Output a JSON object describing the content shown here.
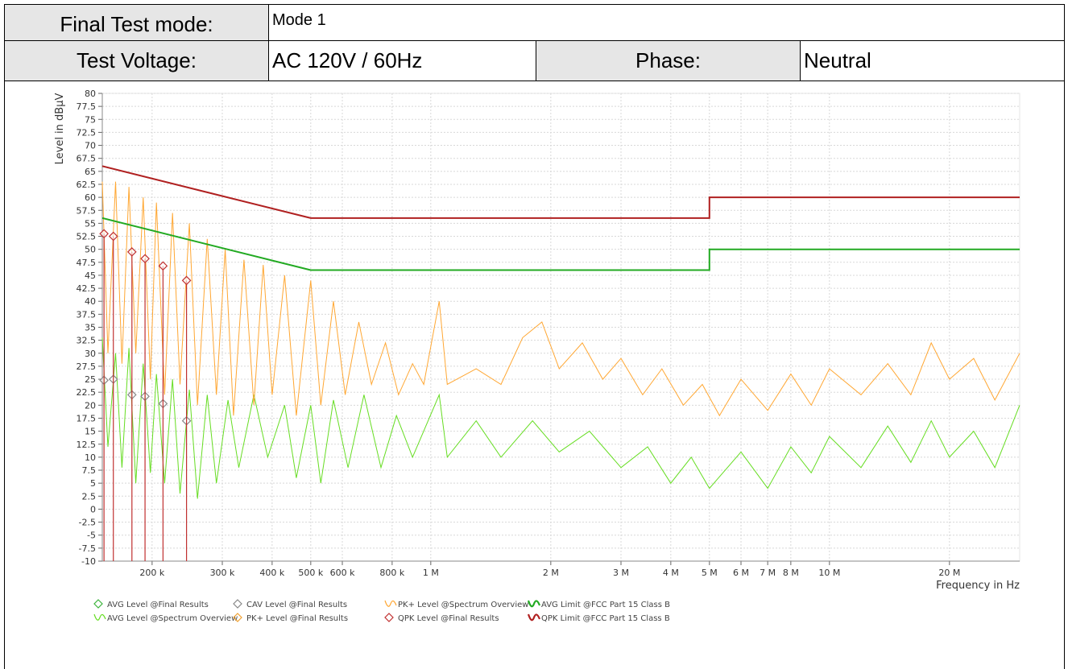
{
  "header": {
    "mode_label": "Final Test mode:",
    "mode_value": "Mode 1",
    "voltage_label": "Test Voltage:",
    "voltage_value": "AC 120V / 60Hz",
    "phase_label": "Phase:",
    "phase_value": "Neutral"
  },
  "chart_data": {
    "type": "line",
    "ylabel": "Level in dBµV",
    "xlabel": "Frequency in Hz",
    "xscale": "log",
    "grid": true,
    "xlim": [
      150000,
      30000000
    ],
    "ylim": [
      -10,
      80
    ],
    "yticks": [
      -10,
      -7.5,
      -5,
      -2.5,
      0,
      2.5,
      5,
      7.5,
      10,
      12.5,
      15,
      17.5,
      20,
      22.5,
      25,
      27.5,
      30,
      32.5,
      35,
      37.5,
      40,
      42.5,
      45,
      47.5,
      50,
      52.5,
      55,
      57.5,
      60,
      62.5,
      65,
      67.5,
      70,
      72.5,
      75,
      77.5,
      80
    ],
    "xticks": [
      {
        "value": 200000,
        "label": "200 k"
      },
      {
        "value": 300000,
        "label": "300 k"
      },
      {
        "value": 400000,
        "label": "400 k"
      },
      {
        "value": 500000,
        "label": "500 k"
      },
      {
        "value": 600000,
        "label": "600 k"
      },
      {
        "value": 800000,
        "label": "800 k"
      },
      {
        "value": 1000000,
        "label": "1 M"
      },
      {
        "value": 2000000,
        "label": "2 M"
      },
      {
        "value": 3000000,
        "label": "3 M"
      },
      {
        "value": 4000000,
        "label": "4 M"
      },
      {
        "value": 5000000,
        "label": "5 M"
      },
      {
        "value": 6000000,
        "label": "6 M"
      },
      {
        "value": 7000000,
        "label": "7 M"
      },
      {
        "value": 8000000,
        "label": "8 M"
      },
      {
        "value": 10000000,
        "label": "10 M"
      },
      {
        "value": 20000000,
        "label": "20 M"
      }
    ],
    "series": [
      {
        "name": "AVG Level @Final Results",
        "color": "#3cb43c",
        "marker": "diamond",
        "x": [],
        "values": []
      },
      {
        "name": "AVG Level @Spectrum Overview",
        "color": "#66dd22",
        "marker": "line",
        "x": [
          150000,
          155000,
          162000,
          168000,
          175000,
          182000,
          190000,
          198000,
          205000,
          215000,
          225000,
          235000,
          248000,
          260000,
          275000,
          290000,
          310000,
          330000,
          360000,
          390000,
          430000,
          460000,
          500000,
          530000,
          570000,
          620000,
          680000,
          750000,
          820000,
          900000,
          1050000,
          1100000,
          1300000,
          1500000,
          1800000,
          2100000,
          2500000,
          3000000,
          3500000,
          4000000,
          4500000,
          5000000,
          6000000,
          7000000,
          8000000,
          9000000,
          10000000,
          12000000,
          14000000,
          16000000,
          18000000,
          20000000,
          23000000,
          26000000,
          30000000
        ],
        "values": [
          33,
          12,
          30,
          8,
          31,
          5,
          28,
          7,
          26,
          5,
          25,
          3,
          23,
          2,
          22,
          5,
          21,
          8,
          22,
          10,
          20,
          6,
          20,
          5,
          21,
          8,
          22,
          8,
          18,
          10,
          22,
          10,
          17,
          10,
          17,
          11,
          15,
          8,
          12,
          5,
          10,
          4,
          11,
          4,
          12,
          7,
          14,
          8,
          16,
          9,
          17,
          10,
          15,
          8,
          20
        ]
      },
      {
        "name": "CAV Level @Final Results",
        "color": "#888888",
        "marker": "diamond",
        "x": [
          151500,
          159900,
          178000,
          192000,
          213000,
          244000
        ],
        "values": [
          24.8,
          25,
          22,
          21.7,
          20.3,
          17
        ]
      },
      {
        "name": "PK+ Level @Final Results",
        "color": "#f0a030",
        "marker": "diamond",
        "x": [],
        "values": []
      },
      {
        "name": "PK+ Level @Spectrum Overview",
        "color": "#ffa733",
        "marker": "line",
        "x": [
          150000,
          155000,
          162000,
          168000,
          175000,
          182000,
          190000,
          198000,
          205000,
          215000,
          225000,
          235000,
          248000,
          260000,
          275000,
          290000,
          305000,
          320000,
          340000,
          360000,
          380000,
          400000,
          430000,
          460000,
          500000,
          530000,
          570000,
          610000,
          660000,
          710000,
          770000,
          830000,
          900000,
          960000,
          1050000,
          1100000,
          1300000,
          1500000,
          1700000,
          1900000,
          2100000,
          2400000,
          2700000,
          3000000,
          3400000,
          3800000,
          4300000,
          4800000,
          5300000,
          6000000,
          7000000,
          8000000,
          9000000,
          10000000,
          12000000,
          14000000,
          16000000,
          18000000,
          20000000,
          23000000,
          26000000,
          30000000
        ],
        "values": [
          63,
          30,
          63,
          28,
          62,
          30,
          60,
          25,
          59,
          22,
          57,
          24,
          55,
          20,
          52,
          22,
          50,
          18,
          48,
          20,
          47,
          22,
          45,
          18,
          44,
          20,
          40,
          22,
          36,
          24,
          32,
          22,
          28,
          24,
          40,
          24,
          27,
          24,
          33,
          36,
          27,
          32,
          25,
          29,
          22,
          27,
          20,
          24,
          18,
          25,
          19,
          26,
          20,
          27,
          22,
          28,
          22,
          32,
          25,
          29,
          21,
          30
        ]
      },
      {
        "name": "QPK Level @Final Results",
        "color": "#c03030",
        "marker": "diamond",
        "stems": true,
        "x": [
          151500,
          159900,
          178000,
          192000,
          213000,
          244000
        ],
        "values": [
          53,
          52.5,
          49.5,
          48.2,
          46.8,
          44
        ]
      },
      {
        "name": "AVG Limit @FCC Part 15 Class B",
        "color": "#22aa22",
        "marker": "limit",
        "x": [
          150000,
          500000,
          5000000,
          5000000,
          30000000
        ],
        "values": [
          56,
          46,
          46,
          50,
          50
        ]
      },
      {
        "name": "QPK Limit @FCC Part 15 Class B",
        "color": "#b02020",
        "marker": "limit",
        "x": [
          150000,
          500000,
          5000000,
          5000000,
          30000000
        ],
        "values": [
          66,
          56,
          56,
          60,
          60
        ]
      }
    ]
  }
}
